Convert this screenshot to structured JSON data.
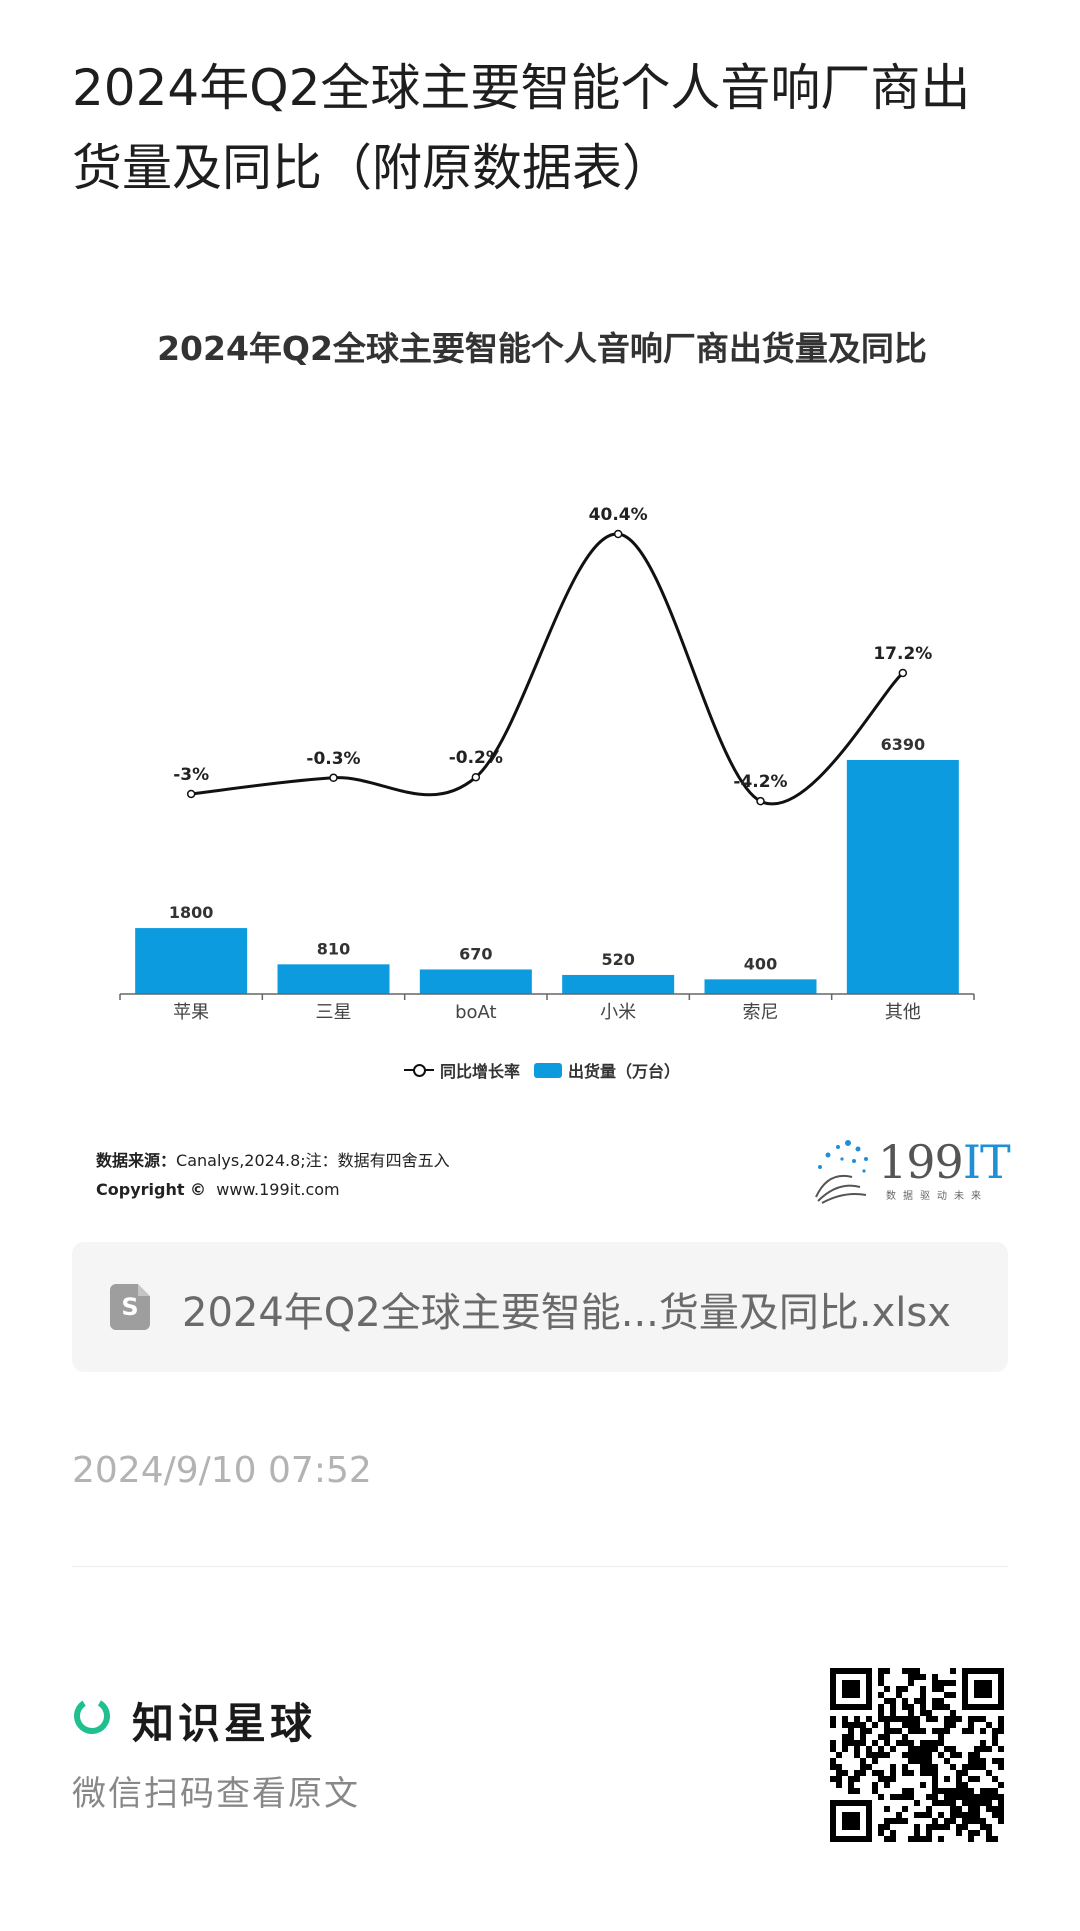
{
  "page": {
    "title": "2024年Q2全球主要智能个人音响厂商出货量及同比（附原数据表）"
  },
  "chart_data": {
    "type": "bar",
    "title": "2024年Q2全球主要智能个人音响厂商出货量及同比",
    "categories": [
      "苹果",
      "三星",
      "boAt",
      "小米",
      "索尼",
      "其他"
    ],
    "series": [
      {
        "name": "出货量（万台）",
        "type": "bar",
        "values": [
          1800,
          810,
          670,
          520,
          400,
          6390
        ],
        "labels": [
          "1800",
          "810",
          "670",
          "520",
          "400",
          "6390"
        ]
      },
      {
        "name": "同比增长率",
        "type": "line",
        "values": [
          -3,
          -0.3,
          -0.2,
          40.4,
          -4.2,
          17.2
        ],
        "labels": [
          "-3%",
          "-0.3%",
          "-0.2%",
          "40.4%",
          "-4.2%",
          "17.2%"
        ]
      }
    ],
    "legend_position": "bottom",
    "grid": false,
    "colors": {
      "bar": "#0d9be0",
      "line": "#111111"
    }
  },
  "footer": {
    "source_label": "数据来源：",
    "source_text": "Canalys,2024.8;注：数据有四舍五入",
    "copyright_label": "Copyright ©",
    "copyright_url": "www.199it.com",
    "brand": {
      "number": "199",
      "suffix": "IT",
      "tagline": "数据驱动未来"
    }
  },
  "attachment": {
    "icon": "spreadsheet-file-icon",
    "icon_letter": "S",
    "file_name": "2024年Q2全球主要智能...货量及同比.xlsx"
  },
  "post": {
    "timestamp": "2024/9/10 07:52"
  },
  "promo": {
    "logo_icon": "zsxq-ring-icon",
    "app_name": "知识星球",
    "scan_hint": "微信扫码查看原文",
    "qr_icon": "qr-code-icon",
    "accent": "#1fbf8f"
  }
}
